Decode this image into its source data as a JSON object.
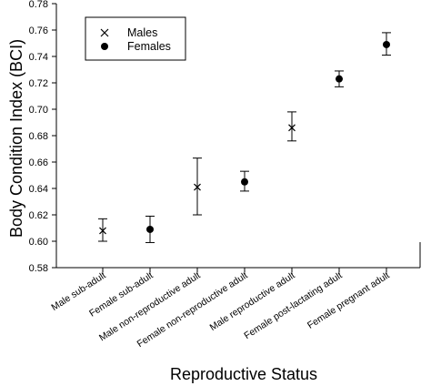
{
  "chart_data": {
    "type": "scatter",
    "title": "",
    "xlabel": "Reproductive Status",
    "ylabel": "Body Condition Index (BCI)",
    "ylim": [
      0.58,
      0.78
    ],
    "yticks": [
      "0.58",
      "0.60",
      "0.62",
      "0.64",
      "0.66",
      "0.68",
      "0.70",
      "0.72",
      "0.74",
      "0.76",
      "0.78"
    ],
    "categories": [
      "Male sub-adult",
      "Female sub-adult",
      "Male non-reproductive adult",
      "Female non-reproductive adult",
      "Male reproductive adult",
      "Female post-lactating adult",
      "Female pregnant adult"
    ],
    "grid": false,
    "legend_position": "top-left",
    "series": [
      {
        "name": "Males",
        "marker": "x",
        "points": [
          {
            "category": "Male sub-adult",
            "y": 0.608,
            "low": 0.6,
            "high": 0.617
          },
          {
            "category": "Male non-reproductive adult",
            "y": 0.641,
            "low": 0.62,
            "high": 0.663
          },
          {
            "category": "Male reproductive adult",
            "y": 0.686,
            "low": 0.676,
            "high": 0.698
          }
        ]
      },
      {
        "name": "Females",
        "marker": "filled-circle",
        "points": [
          {
            "category": "Female sub-adult",
            "y": 0.609,
            "low": 0.599,
            "high": 0.619
          },
          {
            "category": "Female non-reproductive adult",
            "y": 0.645,
            "low": 0.638,
            "high": 0.653
          },
          {
            "category": "Female post-lactating adult",
            "y": 0.723,
            "low": 0.717,
            "high": 0.729
          },
          {
            "category": "Female pregnant adult",
            "y": 0.749,
            "low": 0.741,
            "high": 0.758
          }
        ]
      }
    ]
  }
}
